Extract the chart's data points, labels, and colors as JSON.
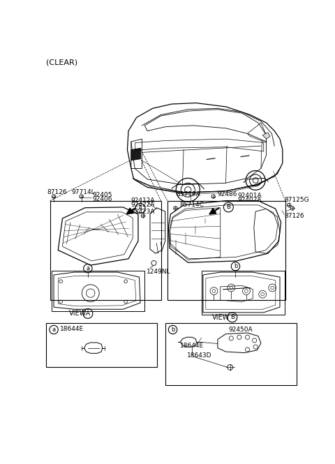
{
  "bg": "#ffffff",
  "title": "(CLEAR)",
  "fs": 6.5,
  "fs_sm": 6.0,
  "labels": {
    "87126_l": "87126",
    "97714L": "97714L",
    "92405": "92405",
    "92406": "92406",
    "92412A": "92412A",
    "92422A": "92422A",
    "82423A": "82423A",
    "85719A": "85719A",
    "85714C": "85714C",
    "92486": "92486",
    "92401A": "92401A",
    "92402A": "92402A",
    "87125G": "87125G",
    "87126_r": "87126",
    "1249NL": "1249NL",
    "18644E": "18644E",
    "18643D": "18643D",
    "92450A": "92450A",
    "VIEW": "VIEW"
  }
}
